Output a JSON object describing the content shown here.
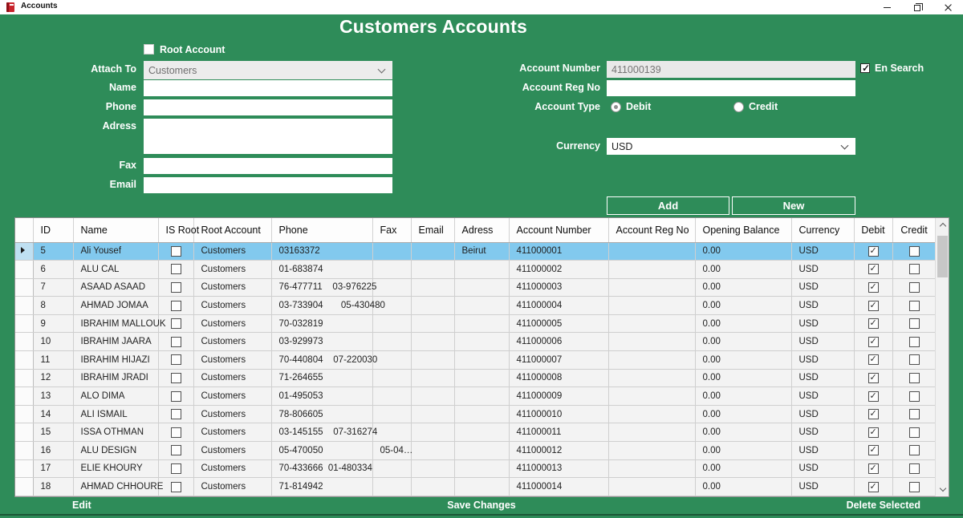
{
  "window": {
    "title": "Accounts"
  },
  "icons": {
    "app": "red-book-icon",
    "minimize": "minimize-icon",
    "restore": "restore-icon",
    "close": "close-icon",
    "combo": "chevron-down-icon",
    "selected_row": "right-arrow-icon"
  },
  "colors": {
    "background_green": "#2e8c59",
    "selected_row_blue": "#82c9ee",
    "grid_cell_bg": "#f3f3f3",
    "disabled_field_bg": "#ececec"
  },
  "page_title": "Customers Accounts",
  "form": {
    "root_account_label": "Root Account",
    "root_account_checked": false,
    "attach_to": {
      "label": "Attach To",
      "value": "Customers"
    },
    "name_label": "Name",
    "phone_label": "Phone",
    "adress_label": "Adress",
    "fax_label": "Fax",
    "email_label": "Email",
    "account_number": {
      "label": "Account Number",
      "value": "411000139"
    },
    "en_search": {
      "label": "En Search",
      "checked": true
    },
    "account_reg_no_label": "Account Reg No",
    "account_type": {
      "label": "Account Type",
      "debit_label": "Debit",
      "credit_label": "Credit",
      "selected": "Debit"
    },
    "currency": {
      "label": "Currency",
      "value": "USD"
    }
  },
  "buttons": {
    "add": "Add",
    "new": "New"
  },
  "grid": {
    "columns": [
      "ID",
      "Name",
      "IS Root",
      "Root Account",
      "Phone",
      "Fax",
      "Email",
      "Adress",
      "Account Number",
      "Account Reg No",
      "Opening Balance",
      "Currency",
      "Debit",
      "Credit"
    ],
    "rows": [
      {
        "selected": true,
        "id": "5",
        "name": "Ali Yousef",
        "is_root": false,
        "root_account": "Customers",
        "phone": "03163372",
        "fax": "",
        "email": "",
        "adress": "Beirut",
        "account_number": "411000001",
        "account_reg_no": "",
        "opening_balance": "0.00",
        "currency": "USD",
        "debit": true,
        "credit": false
      },
      {
        "selected": false,
        "id": "6",
        "name": "ALU CAL",
        "is_root": false,
        "root_account": "Customers",
        "phone": "01-683874",
        "fax": "",
        "email": "",
        "adress": "",
        "account_number": "411000002",
        "account_reg_no": "",
        "opening_balance": "0.00",
        "currency": "USD",
        "debit": true,
        "credit": false
      },
      {
        "selected": false,
        "id": "7",
        "name": "ASAAD ASAAD",
        "is_root": false,
        "root_account": "Customers",
        "phone": "76-477711    03-976225",
        "fax": "",
        "email": "",
        "adress": "",
        "account_number": "411000003",
        "account_reg_no": "",
        "opening_balance": "0.00",
        "currency": "USD",
        "debit": true,
        "credit": false
      },
      {
        "selected": false,
        "id": "8",
        "name": "AHMAD JOMAA",
        "is_root": false,
        "root_account": "Customers",
        "phone": "03-733904       05-430480",
        "fax": "",
        "email": "",
        "adress": "",
        "account_number": "411000004",
        "account_reg_no": "",
        "opening_balance": "0.00",
        "currency": "USD",
        "debit": true,
        "credit": false
      },
      {
        "selected": false,
        "id": "9",
        "name": "IBRAHIM MALLOUK",
        "is_root": false,
        "root_account": "Customers",
        "phone": "70-032819",
        "fax": "",
        "email": "",
        "adress": "",
        "account_number": "411000005",
        "account_reg_no": "",
        "opening_balance": "0.00",
        "currency": "USD",
        "debit": true,
        "credit": false
      },
      {
        "selected": false,
        "id": "10",
        "name": "IBRAHIM JAARA",
        "is_root": false,
        "root_account": "Customers",
        "phone": "03-929973",
        "fax": "",
        "email": "",
        "adress": "",
        "account_number": "411000006",
        "account_reg_no": "",
        "opening_balance": "0.00",
        "currency": "USD",
        "debit": true,
        "credit": false
      },
      {
        "selected": false,
        "id": "11",
        "name": "IBRAHIM HIJAZI",
        "is_root": false,
        "root_account": "Customers",
        "phone": "70-440804    07-220030",
        "fax": "",
        "email": "",
        "adress": "",
        "account_number": "411000007",
        "account_reg_no": "",
        "opening_balance": "0.00",
        "currency": "USD",
        "debit": true,
        "credit": false
      },
      {
        "selected": false,
        "id": "12",
        "name": "IBRAHIM JRADI",
        "is_root": false,
        "root_account": "Customers",
        "phone": "71-264655",
        "fax": "",
        "email": "",
        "adress": "",
        "account_number": "411000008",
        "account_reg_no": "",
        "opening_balance": "0.00",
        "currency": "USD",
        "debit": true,
        "credit": false
      },
      {
        "selected": false,
        "id": "13",
        "name": "ALO DIMA",
        "is_root": false,
        "root_account": "Customers",
        "phone": "01-495053",
        "fax": "",
        "email": "",
        "adress": "",
        "account_number": "411000009",
        "account_reg_no": "",
        "opening_balance": "0.00",
        "currency": "USD",
        "debit": true,
        "credit": false
      },
      {
        "selected": false,
        "id": "14",
        "name": "ALI ISMAIL",
        "is_root": false,
        "root_account": "Customers",
        "phone": "78-806605",
        "fax": "",
        "email": "",
        "adress": "",
        "account_number": "411000010",
        "account_reg_no": "",
        "opening_balance": "0.00",
        "currency": "USD",
        "debit": true,
        "credit": false
      },
      {
        "selected": false,
        "id": "15",
        "name": "ISSA OTHMAN",
        "is_root": false,
        "root_account": "Customers",
        "phone": "03-145155    07-316274",
        "fax": "",
        "email": "",
        "adress": "",
        "account_number": "411000011",
        "account_reg_no": "",
        "opening_balance": "0.00",
        "currency": "USD",
        "debit": true,
        "credit": false
      },
      {
        "selected": false,
        "id": "16",
        "name": "ALU DESIGN",
        "is_root": false,
        "root_account": "Customers",
        "phone": "05-470050",
        "fax": "05-04…",
        "email": "",
        "adress": "",
        "account_number": "411000012",
        "account_reg_no": "",
        "opening_balance": "0.00",
        "currency": "USD",
        "debit": true,
        "credit": false
      },
      {
        "selected": false,
        "id": "17",
        "name": "ELIE KHOURY",
        "is_root": false,
        "root_account": "Customers",
        "phone": "70-433666  01-480334",
        "fax": "",
        "email": "",
        "adress": "",
        "account_number": "411000013",
        "account_reg_no": "",
        "opening_balance": "0.00",
        "currency": "USD",
        "debit": true,
        "credit": false
      },
      {
        "selected": false,
        "id": "18",
        "name": "AHMAD CHHOURE",
        "is_root": false,
        "root_account": "Customers",
        "phone": "71-814942",
        "fax": "",
        "email": "",
        "adress": "",
        "account_number": "411000014",
        "account_reg_no": "",
        "opening_balance": "0.00",
        "currency": "USD",
        "debit": true,
        "credit": false
      }
    ]
  },
  "footer": {
    "edit": "Edit",
    "save": "Save Changes",
    "delete": "Delete Selected"
  }
}
